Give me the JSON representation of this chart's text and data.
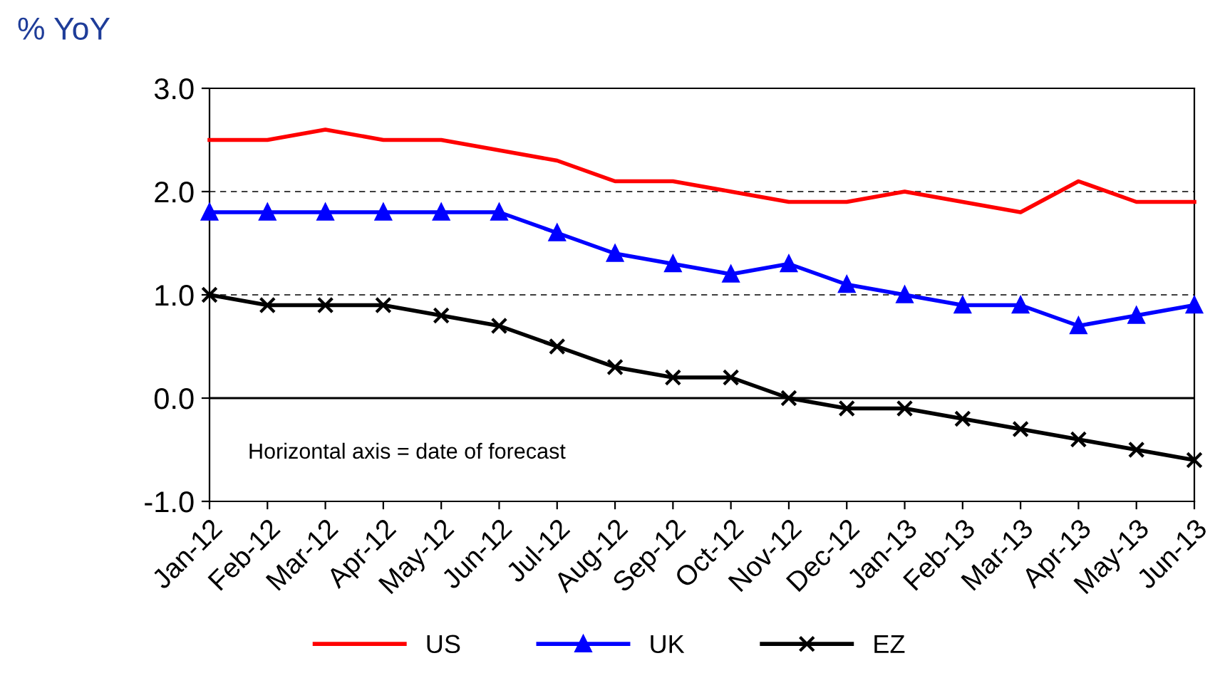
{
  "chart_data": {
    "type": "line",
    "ylabel": "% YoY",
    "categories": [
      "Jan-12",
      "Feb-12",
      "Mar-12",
      "Apr-12",
      "May-12",
      "Jun-12",
      "Jul-12",
      "Aug-12",
      "Sep-12",
      "Oct-12",
      "Nov-12",
      "Dec-12",
      "Jan-13",
      "Feb-13",
      "Mar-13",
      "Apr-13",
      "May-13",
      "Jun-13"
    ],
    "series": [
      {
        "name": "US",
        "color": "#ff0000",
        "marker": "none",
        "values": [
          2.5,
          2.5,
          2.6,
          2.5,
          2.5,
          2.4,
          2.3,
          2.1,
          2.1,
          2.0,
          1.9,
          1.9,
          2.0,
          1.9,
          1.8,
          2.1,
          1.9,
          1.9
        ]
      },
      {
        "name": "UK",
        "color": "#0000ff",
        "marker": "triangle",
        "values": [
          1.8,
          1.8,
          1.8,
          1.8,
          1.8,
          1.8,
          1.6,
          1.4,
          1.3,
          1.2,
          1.3,
          1.1,
          1.0,
          0.9,
          0.9,
          0.7,
          0.8,
          0.9
        ]
      },
      {
        "name": "EZ",
        "color": "#000000",
        "marker": "cross",
        "values": [
          1.0,
          0.9,
          0.9,
          0.9,
          0.8,
          0.7,
          0.5,
          0.3,
          0.2,
          0.2,
          0.0,
          -0.1,
          -0.1,
          -0.2,
          -0.3,
          -0.4,
          -0.5,
          -0.6
        ]
      }
    ],
    "ylim": [
      -1.0,
      3.0
    ],
    "yticks": [
      {
        "value": -1.0,
        "label": "-1.0"
      },
      {
        "value": 0.0,
        "label": "0.0"
      },
      {
        "value": 1.0,
        "label": "1.0"
      },
      {
        "value": 2.0,
        "label": "2.0"
      },
      {
        "value": 3.0,
        "label": "3.0"
      }
    ],
    "grid": "y",
    "legend": "bottom",
    "ref_lines": [
      {
        "axis": "y",
        "value": 0.0,
        "color": "#000000",
        "line_style": "solid"
      }
    ],
    "annotations": [
      "Horizontal axis = date of forecast"
    ]
  }
}
